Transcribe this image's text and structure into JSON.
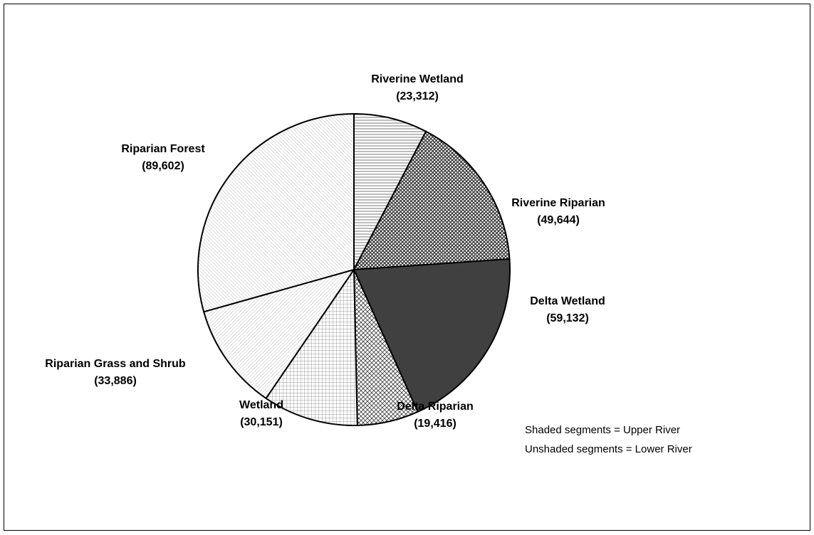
{
  "chart_data": {
    "type": "pie",
    "categories": [
      "Riverine Wetland",
      "Riverine Riparian",
      "Delta Wetland",
      "Delta Riparian",
      "Wetland",
      "Riparian Grass and Shrub",
      "Riparian Forest"
    ],
    "values": [
      23312,
      49644,
      59132,
      19416,
      30151,
      33886,
      89602
    ],
    "value_labels": [
      "(23,312)",
      "(49,644)",
      "(59,132)",
      "(19,416)",
      "(30,151)",
      "(33,886)",
      "(89,602)"
    ],
    "colors": [
      "#555555",
      "#333333",
      "#404040",
      "#444444",
      "#999999",
      "#aaaaaa",
      "#aaaaaa"
    ],
    "annotations": [
      "Shaded segments = Upper River",
      "Unshaded segments = Lower River"
    ]
  }
}
